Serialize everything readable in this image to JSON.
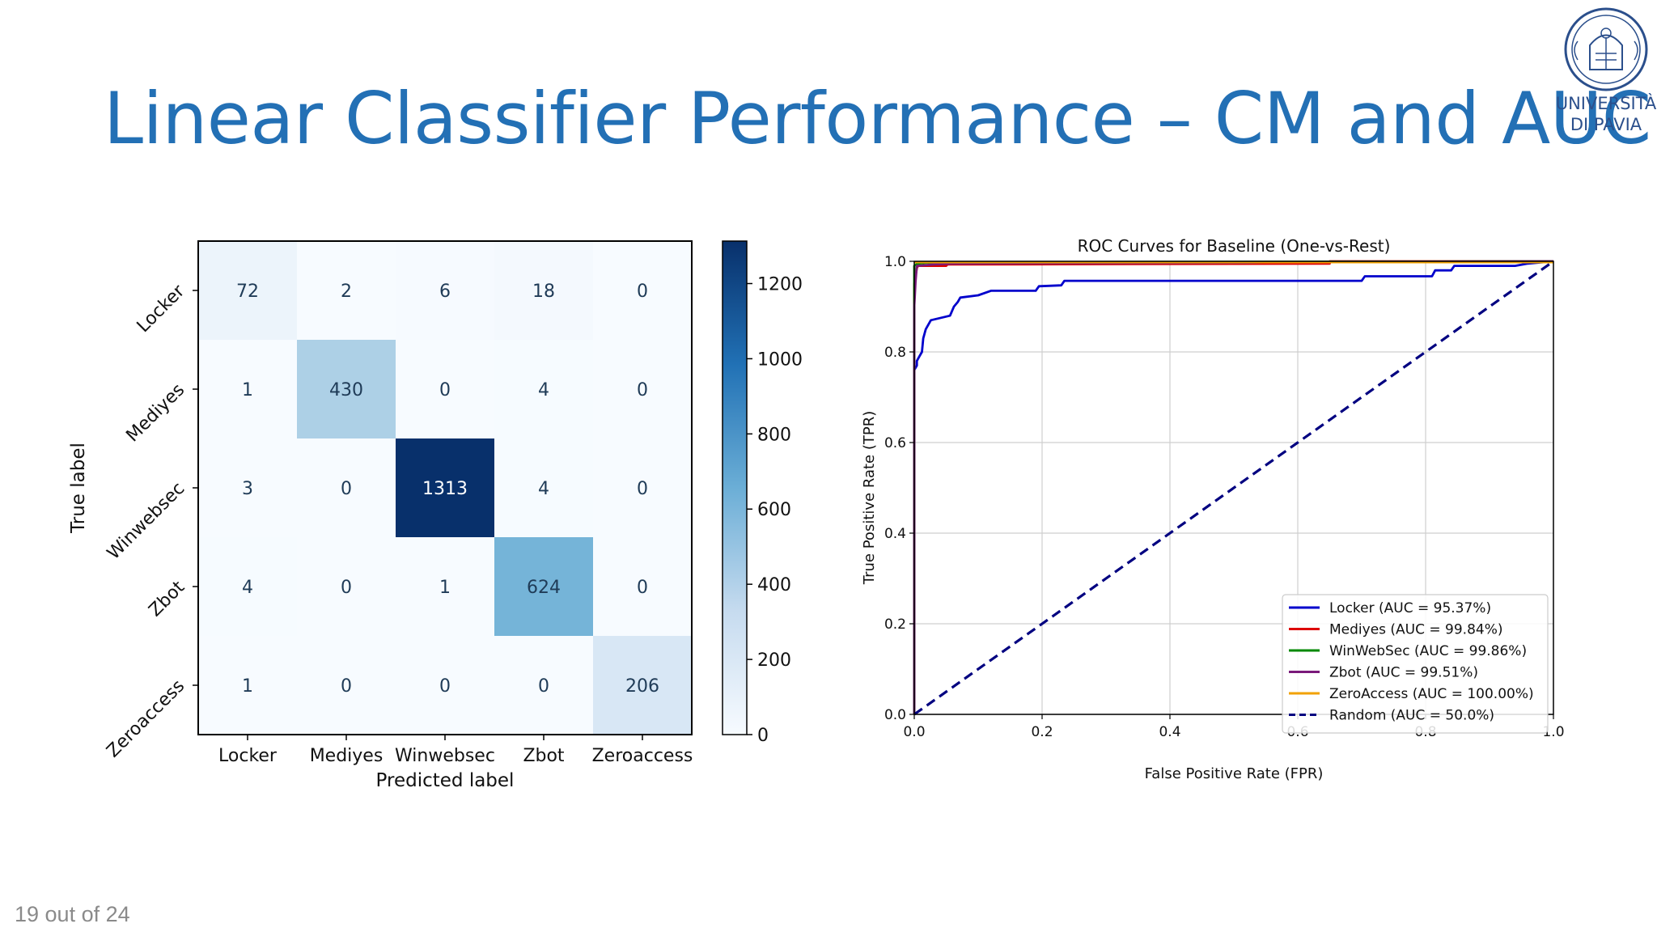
{
  "slide": {
    "title": "Linear Classifier Performance – CM and AUC",
    "page_indicator": "19 out of 24",
    "logo": {
      "line1": "UNIVERSITÀ",
      "line2": "DI PAVIA",
      "color": "#2b4f8c"
    },
    "title_color": "#2370b5"
  },
  "chart_data": [
    {
      "type": "heatmap",
      "xlabel": "Predicted label",
      "ylabel": "True label",
      "x_categories": [
        "Locker",
        "Mediyes",
        "Winwebsec",
        "Zbot",
        "Zeroaccess"
      ],
      "y_categories": [
        "Locker",
        "Mediyes",
        "Winwebsec",
        "Zbot",
        "Zeroaccess"
      ],
      "matrix": [
        [
          72,
          2,
          6,
          18,
          0
        ],
        [
          1,
          430,
          0,
          4,
          0
        ],
        [
          3,
          0,
          1313,
          4,
          0
        ],
        [
          4,
          0,
          1,
          624,
          0
        ],
        [
          1,
          0,
          0,
          0,
          206
        ]
      ],
      "colormap": "Blues",
      "colorbar_ticks": [
        0,
        200,
        400,
        600,
        800,
        1000,
        1200
      ],
      "colorbar_range": [
        0,
        1313
      ]
    },
    {
      "type": "line",
      "title": "ROC Curves for Baseline (One-vs-Rest)",
      "xlabel": "False Positive Rate (FPR)",
      "ylabel": "True Positive Rate (TPR)",
      "xlim": [
        0.0,
        1.0
      ],
      "ylim": [
        0.0,
        1.0
      ],
      "x_ticks": [
        "0.0",
        "0.2",
        "0.4",
        "0.6",
        "0.8",
        "1.0"
      ],
      "y_ticks": [
        "0.0",
        "0.2",
        "0.4",
        "0.6",
        "0.8",
        "1.0"
      ],
      "grid": true,
      "legend_position": "lower-right",
      "series": [
        {
          "name": "Locker (AUC = 95.37%)",
          "color": "#0000cc",
          "dashed": false,
          "points": [
            [
              0,
              0
            ],
            [
              0,
              0.76
            ],
            [
              0.004,
              0.77
            ],
            [
              0.004,
              0.78
            ],
            [
              0.008,
              0.79
            ],
            [
              0.012,
              0.8
            ],
            [
              0.014,
              0.83
            ],
            [
              0.018,
              0.85
            ],
            [
              0.026,
              0.87
            ],
            [
              0.056,
              0.88
            ],
            [
              0.062,
              0.9
            ],
            [
              0.068,
              0.91
            ],
            [
              0.072,
              0.92
            ],
            [
              0.1,
              0.925
            ],
            [
              0.12,
              0.935
            ],
            [
              0.19,
              0.935
            ],
            [
              0.195,
              0.945
            ],
            [
              0.23,
              0.947
            ],
            [
              0.235,
              0.957
            ],
            [
              0.4,
              0.957
            ],
            [
              0.6,
              0.957
            ],
            [
              0.7,
              0.957
            ],
            [
              0.705,
              0.967
            ],
            [
              0.81,
              0.967
            ],
            [
              0.815,
              0.98
            ],
            [
              0.84,
              0.98
            ],
            [
              0.845,
              0.99
            ],
            [
              0.94,
              0.99
            ],
            [
              0.96,
              0.995
            ],
            [
              1,
              1
            ]
          ]
        },
        {
          "name": "Mediyes (AUC = 99.84%)",
          "color": "#dd0000",
          "dashed": false,
          "points": [
            [
              0,
              0
            ],
            [
              0,
              0.95
            ],
            [
              0.004,
              0.985
            ],
            [
              0.006,
              0.99
            ],
            [
              0.05,
              0.99
            ],
            [
              0.052,
              0.993
            ],
            [
              0.65,
              0.995
            ],
            [
              0.65,
              1
            ],
            [
              1,
              1
            ]
          ]
        },
        {
          "name": "WinWebSec (AUC = 99.86%)",
          "color": "#008800",
          "dashed": false,
          "points": [
            [
              0,
              0
            ],
            [
              0,
              0.99
            ],
            [
              0.005,
              0.995
            ],
            [
              0.02,
              0.997
            ],
            [
              0.1,
              0.998
            ],
            [
              1,
              1
            ]
          ]
        },
        {
          "name": "Zbot (AUC = 99.51%)",
          "color": "#7a1a7a",
          "dashed": false,
          "points": [
            [
              0,
              0
            ],
            [
              0,
              0.9
            ],
            [
              0.002,
              0.955
            ],
            [
              0.004,
              0.99
            ],
            [
              0.03,
              0.993
            ],
            [
              0.06,
              0.995
            ],
            [
              0.52,
              0.997
            ],
            [
              0.55,
              0.998
            ],
            [
              1,
              1
            ]
          ]
        },
        {
          "name": "ZeroAccess (AUC = 100.00%)",
          "color": "#f2a100",
          "dashed": false,
          "points": [
            [
              0,
              0.998
            ],
            [
              1,
              0.998
            ]
          ]
        },
        {
          "name": "Random (AUC = 50.0%)",
          "color": "#000080",
          "dashed": true,
          "points": [
            [
              0,
              0
            ],
            [
              1,
              1
            ]
          ]
        }
      ]
    }
  ]
}
